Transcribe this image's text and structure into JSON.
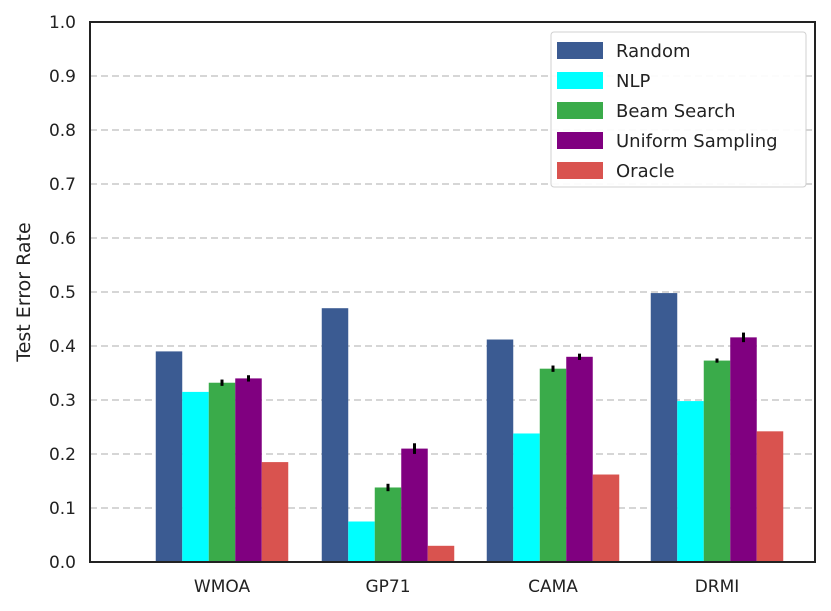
{
  "chart_data": {
    "type": "bar",
    "title": "",
    "xlabel": "",
    "ylabel": "Test Error Rate",
    "ylim": [
      0,
      1.0
    ],
    "yticks": [
      "0.0",
      "0.1",
      "0.2",
      "0.3",
      "0.4",
      "0.5",
      "0.6",
      "0.7",
      "0.8",
      "0.9",
      "1.0"
    ],
    "grid": "horizontal dashed",
    "legend_position": "top-right",
    "categories": [
      "WMOA",
      "GP71",
      "CAMA",
      "DRMI"
    ],
    "series": [
      {
        "name": "Random",
        "color": "#3b5b92",
        "values": [
          0.39,
          0.47,
          0.412,
          0.498
        ],
        "errors": [
          0,
          0,
          0,
          0
        ]
      },
      {
        "name": "NLP",
        "color": "#00ffff",
        "values": [
          0.315,
          0.075,
          0.238,
          0.298
        ],
        "errors": [
          0,
          0,
          0,
          0
        ]
      },
      {
        "name": "Beam Search",
        "color": "#3aab4a",
        "values": [
          0.332,
          0.138,
          0.358,
          0.373
        ],
        "errors": [
          0.004,
          0.005,
          0.004,
          0.002
        ]
      },
      {
        "name": "Uniform Sampling",
        "color": "#800080",
        "values": [
          0.34,
          0.21,
          0.38,
          0.416
        ],
        "errors": [
          0.004,
          0.008,
          0.004,
          0.007
        ]
      },
      {
        "name": "Oracle",
        "color": "#d9534f",
        "values": [
          0.185,
          0.03,
          0.162,
          0.242
        ],
        "errors": [
          0,
          0,
          0,
          0
        ]
      }
    ]
  }
}
